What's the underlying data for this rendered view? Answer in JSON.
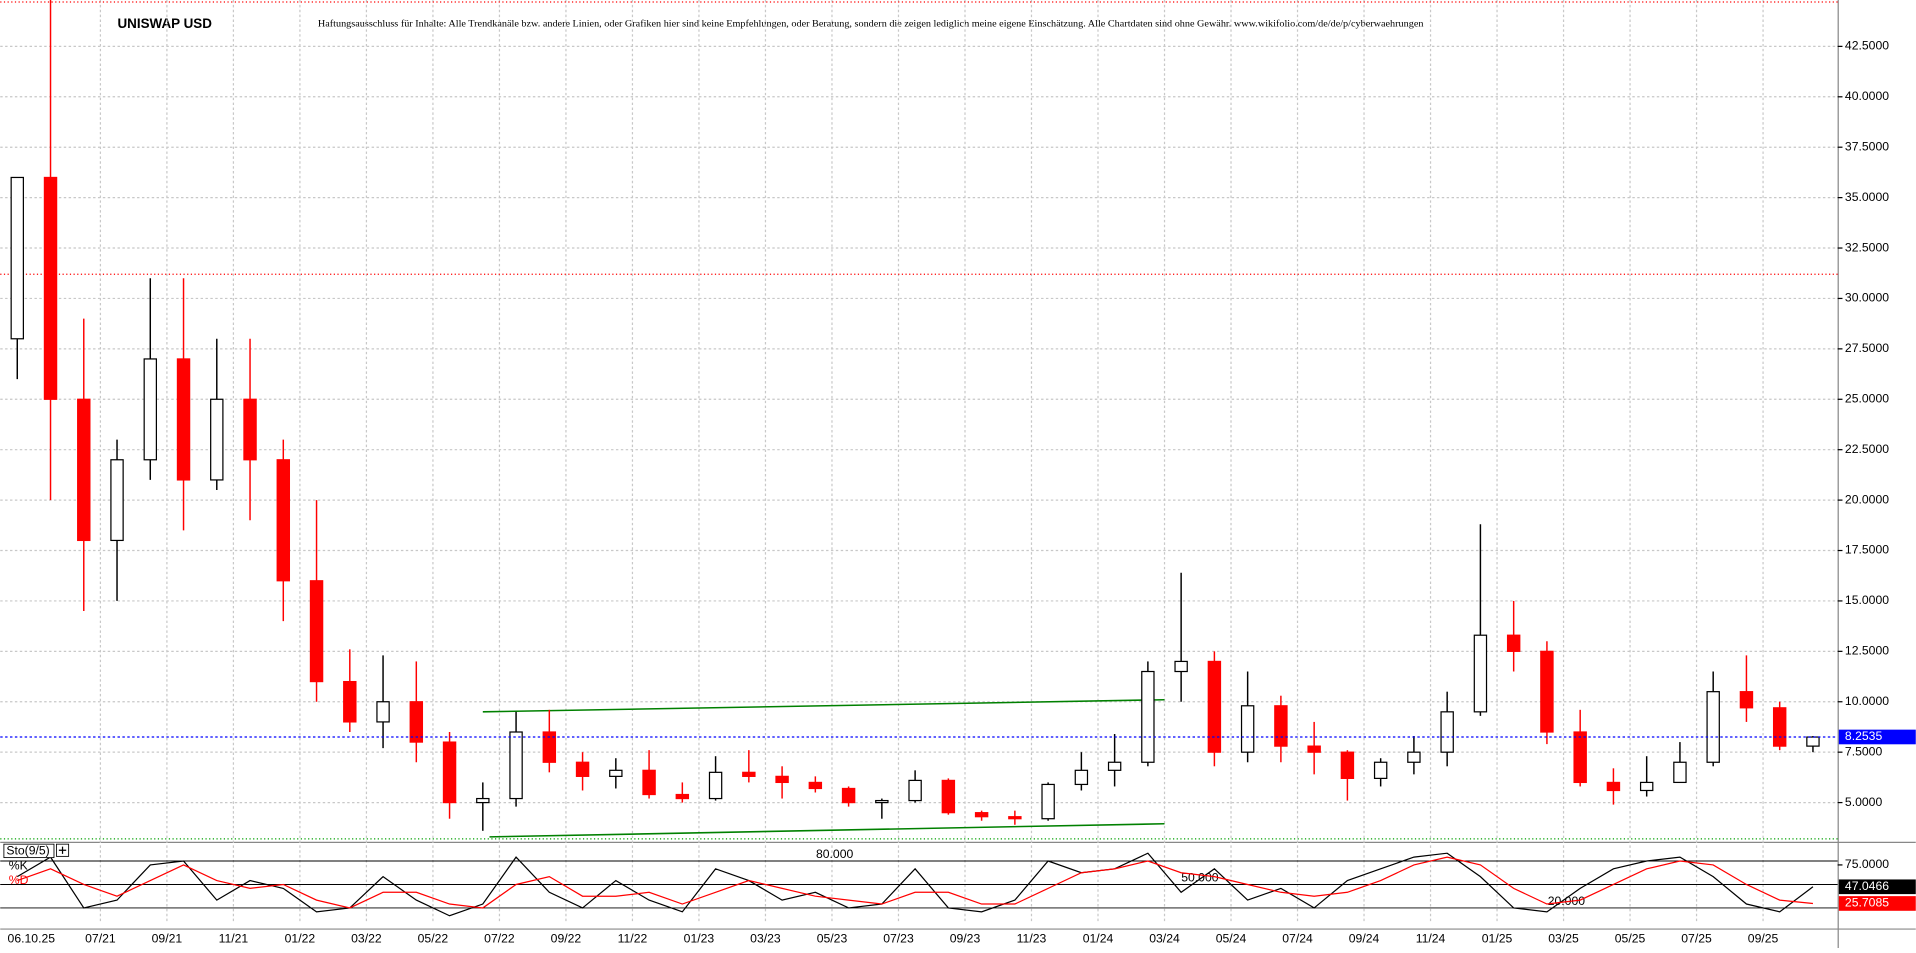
{
  "chart_data": [
    {
      "type": "candlestick",
      "title": "UNISWAP USD",
      "disclaimer": "Haftungsausschluss für Inhalte: Alle Trendkanäle bzw. andere Linien, oder Grafiken hier sind keine Empfehlungen, oder Beratung, sondern die zeigen lediglich meine eigene Einschätzung. Alle Chartdaten sind ohne Gewähr.  www.wikifolio.com/de/de/p/cyberwaehrungen",
      "date_label": "06.10.25",
      "categories": [
        null,
        null,
        null,
        "07/21",
        null,
        "09/21",
        null,
        "11/21",
        null,
        "01/22",
        null,
        "03/22",
        null,
        "05/22",
        null,
        "07/22",
        null,
        "09/22",
        null,
        "11/22",
        null,
        "01/23",
        null,
        "03/23",
        null,
        "05/23",
        null,
        "07/23",
        null,
        "09/23",
        null,
        "11/23",
        null,
        "01/24",
        null,
        "03/24",
        null,
        "05/24",
        null,
        "07/24",
        null,
        "09/24",
        null,
        "11/24",
        null,
        "01/25",
        null,
        "03/25",
        null,
        "05/25",
        null,
        "07/25",
        null,
        "09/25",
        null
      ],
      "series": [
        {
          "open": [
            28,
            36,
            25,
            18,
            22,
            27,
            21,
            25,
            22,
            16,
            11,
            9,
            10,
            8,
            5,
            5.2,
            8.5,
            7,
            6.3,
            6.6,
            5.4,
            5.2,
            6.5,
            6.3,
            6,
            5.7,
            5,
            5.1,
            6.1,
            4.5,
            4.3,
            4.2,
            5.9,
            6.6,
            7,
            11.5,
            12,
            7.5,
            9.8,
            7.8,
            7.5,
            6.2,
            7,
            7.5,
            9.5,
            13.3,
            12.5,
            8.5,
            6,
            5.6,
            6,
            7,
            10.5,
            9.7,
            7.8
          ],
          "high": [
            36,
            44.8,
            29,
            23,
            31,
            31,
            28,
            28,
            23,
            20,
            12.6,
            12.3,
            12,
            8.5,
            6,
            9.5,
            9.6,
            7.5,
            7.2,
            7.6,
            6,
            7.3,
            7.6,
            6.8,
            6.3,
            5.8,
            5.2,
            6.6,
            6.2,
            4.6,
            4.6,
            6,
            7.5,
            8.4,
            12,
            16.4,
            12.5,
            11.5,
            10.3,
            9,
            7.6,
            7.2,
            8.3,
            10.5,
            18.8,
            15,
            13,
            9.6,
            6.7,
            7.3,
            8,
            11.5,
            12.3,
            10,
            8.3
          ],
          "low": [
            26,
            20,
            14.5,
            15,
            21,
            18.5,
            20.5,
            19,
            14,
            10,
            8.5,
            7.7,
            7,
            4.2,
            3.6,
            4.8,
            6.5,
            5.6,
            5.7,
            5.2,
            5,
            5.1,
            6,
            5.2,
            5.5,
            4.8,
            4.2,
            5,
            4.4,
            4.1,
            3.9,
            4.1,
            5.6,
            5.8,
            6.8,
            10,
            6.8,
            7,
            7,
            6.4,
            5.1,
            5.8,
            6.4,
            6.8,
            9.3,
            11.5,
            7.9,
            5.8,
            4.9,
            5.3,
            6,
            6.8,
            9,
            7.6,
            7.5
          ],
          "close": [
            36,
            25,
            18,
            22,
            27,
            21,
            25,
            22,
            16,
            11,
            9,
            10,
            8,
            5,
            5.2,
            8.5,
            7,
            6.3,
            6.6,
            5.4,
            5.2,
            6.5,
            6.3,
            6,
            5.7,
            5,
            5.1,
            6.1,
            4.5,
            4.3,
            4.2,
            5.9,
            6.6,
            7,
            11.5,
            12,
            7.5,
            9.8,
            7.8,
            7.5,
            6.2,
            7,
            7.5,
            9.5,
            13.3,
            12.5,
            8.5,
            6,
            5.6,
            6,
            7,
            10.5,
            9.7,
            7.8,
            8.25
          ]
        }
      ],
      "up_color": "#000000",
      "down_color": "#ff0000",
      "ylim": [
        3.12,
        44.8
      ],
      "yticks": [
        {
          "value": 5,
          "label": "5.0000"
        },
        {
          "value": 7.5,
          "label": "7.5000"
        },
        {
          "value": 10,
          "label": "10.0000"
        },
        {
          "value": 12.5,
          "label": "12.5000"
        },
        {
          "value": 15,
          "label": "15.0000"
        },
        {
          "value": 17.5,
          "label": "17.5000"
        },
        {
          "value": 20,
          "label": "20.0000"
        },
        {
          "value": 22.5,
          "label": "22.5000"
        },
        {
          "value": 25,
          "label": "25.0000"
        },
        {
          "value": 27.5,
          "label": "27.5000"
        },
        {
          "value": 30,
          "label": "30.0000"
        },
        {
          "value": 32.5,
          "label": "32.5000"
        },
        {
          "value": 35,
          "label": "35.0000"
        },
        {
          "value": 37.5,
          "label": "37.5000"
        },
        {
          "value": 40,
          "label": "40.0000"
        },
        {
          "value": 42.5,
          "label": "42.5000"
        }
      ],
      "grid": true,
      "current_price": 8.2535,
      "current_color": "#0000ff",
      "hlines": [
        {
          "value": 44.7,
          "color": "#ff0000"
        },
        {
          "value": 31.2,
          "color": "#ff0000"
        },
        {
          "value": 3.2,
          "color": "#00a000"
        }
      ],
      "trendlines": [
        {
          "x": [
            14.5,
            35
          ],
          "y": [
            9.5,
            10.1
          ],
          "color": "#008000"
        },
        {
          "x": [
            14.7,
            35
          ],
          "y": [
            3.3,
            3.95
          ],
          "color": "#008000"
        }
      ]
    },
    {
      "type": "line",
      "title": "Sto(9/5)",
      "series": [
        {
          "name": "%K",
          "color": "#000000",
          "values": [
            60,
            85,
            20,
            30,
            75,
            80,
            30,
            55,
            45,
            15,
            20,
            60,
            30,
            10,
            25,
            85,
            40,
            20,
            55,
            30,
            15,
            70,
            55,
            30,
            40,
            20,
            25,
            70,
            20,
            15,
            30,
            80,
            65,
            70,
            90,
            40,
            70,
            30,
            45,
            20,
            55,
            70,
            85,
            90,
            60,
            20,
            15,
            45,
            70,
            80,
            85,
            60,
            25,
            15,
            47.0466
          ]
        },
        {
          "name": "%D",
          "color": "#ff0000",
          "values": [
            55,
            70,
            50,
            35,
            55,
            75,
            55,
            45,
            50,
            30,
            20,
            40,
            40,
            25,
            20,
            50,
            60,
            35,
            35,
            40,
            25,
            40,
            55,
            45,
            35,
            30,
            25,
            40,
            40,
            25,
            25,
            45,
            65,
            70,
            80,
            65,
            60,
            50,
            40,
            35,
            40,
            55,
            75,
            85,
            75,
            45,
            25,
            30,
            50,
            70,
            80,
            75,
            50,
            30,
            25.7085
          ]
        }
      ],
      "ylim": [
        0,
        100
      ],
      "yticks": [
        {
          "value": 75,
          "label": "75.0000"
        }
      ],
      "levels": [
        {
          "value": 80,
          "label": "80.000"
        },
        {
          "value": 50,
          "label": "50.000"
        },
        {
          "value": 20,
          "label": "20.000"
        }
      ]
    }
  ]
}
